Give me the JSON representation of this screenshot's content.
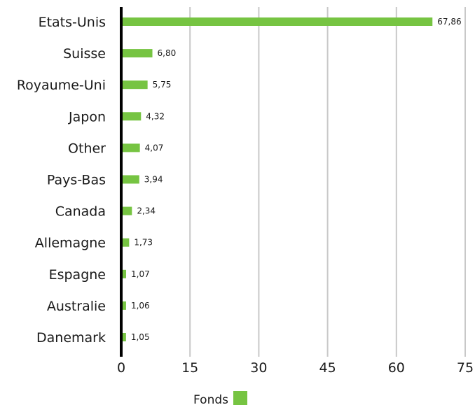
{
  "chart_data": {
    "type": "bar",
    "orientation": "horizontal",
    "categories": [
      "Etats-Unis",
      "Suisse",
      "Royaume-Uni",
      "Japon",
      "Other",
      "Pays-Bas",
      "Canada",
      "Allemagne",
      "Espagne",
      "Australie",
      "Danemark"
    ],
    "series": [
      {
        "name": "Fonds",
        "values": [
          67.86,
          6.8,
          5.75,
          4.32,
          4.07,
          3.94,
          2.34,
          1.73,
          1.07,
          1.06,
          1.05
        ],
        "labels": [
          "67,86",
          "6,80",
          "5,75",
          "4,32",
          "4,07",
          "3,94",
          "2,34",
          "1,73",
          "1,07",
          "1,06",
          "1,05"
        ],
        "color": "#76c442"
      }
    ],
    "xlim": [
      0,
      75
    ],
    "xticks": [
      0,
      15,
      30,
      45,
      60,
      75
    ],
    "xtick_labels": [
      "0",
      "15",
      "30",
      "45",
      "60",
      "75"
    ],
    "grid": "vertical",
    "legend_position": "bottom-center",
    "axis_color": "#000000",
    "grid_color": "#c8c8c8"
  }
}
